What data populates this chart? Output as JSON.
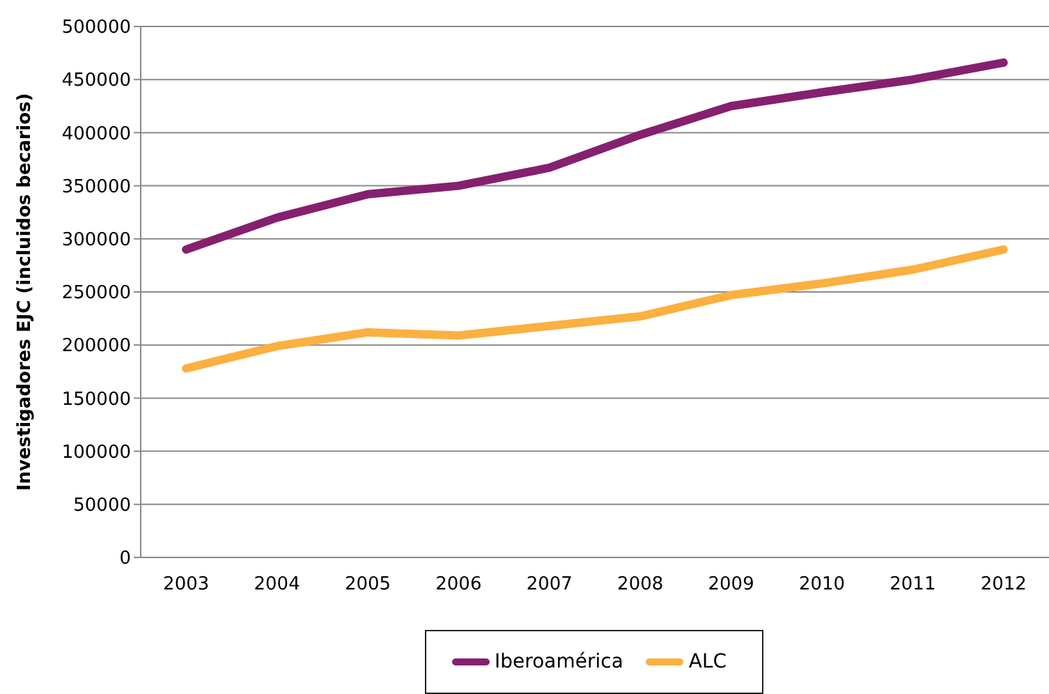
{
  "chart_data": {
    "type": "line",
    "ylabel": "Investigadores EJC (incluidos becarios)",
    "categories": [
      "2003",
      "2004",
      "2005",
      "2006",
      "2007",
      "2008",
      "2009",
      "2010",
      "2011",
      "2012"
    ],
    "series": [
      {
        "name": "Iberoamérica",
        "color": "#85206f",
        "values": [
          290000,
          320000,
          342000,
          350000,
          367000,
          398000,
          425000,
          438000,
          450000,
          466000
        ]
      },
      {
        "name": "ALC",
        "color": "#fbb040",
        "values": [
          178000,
          199000,
          212000,
          209000,
          218000,
          227000,
          247000,
          258000,
          271000,
          290000
        ]
      }
    ],
    "ylim": [
      0,
      500000
    ],
    "yticks": [
      0,
      50000,
      100000,
      150000,
      200000,
      250000,
      300000,
      350000,
      400000,
      450000,
      500000
    ],
    "grid": "y",
    "legend": "bottom"
  }
}
